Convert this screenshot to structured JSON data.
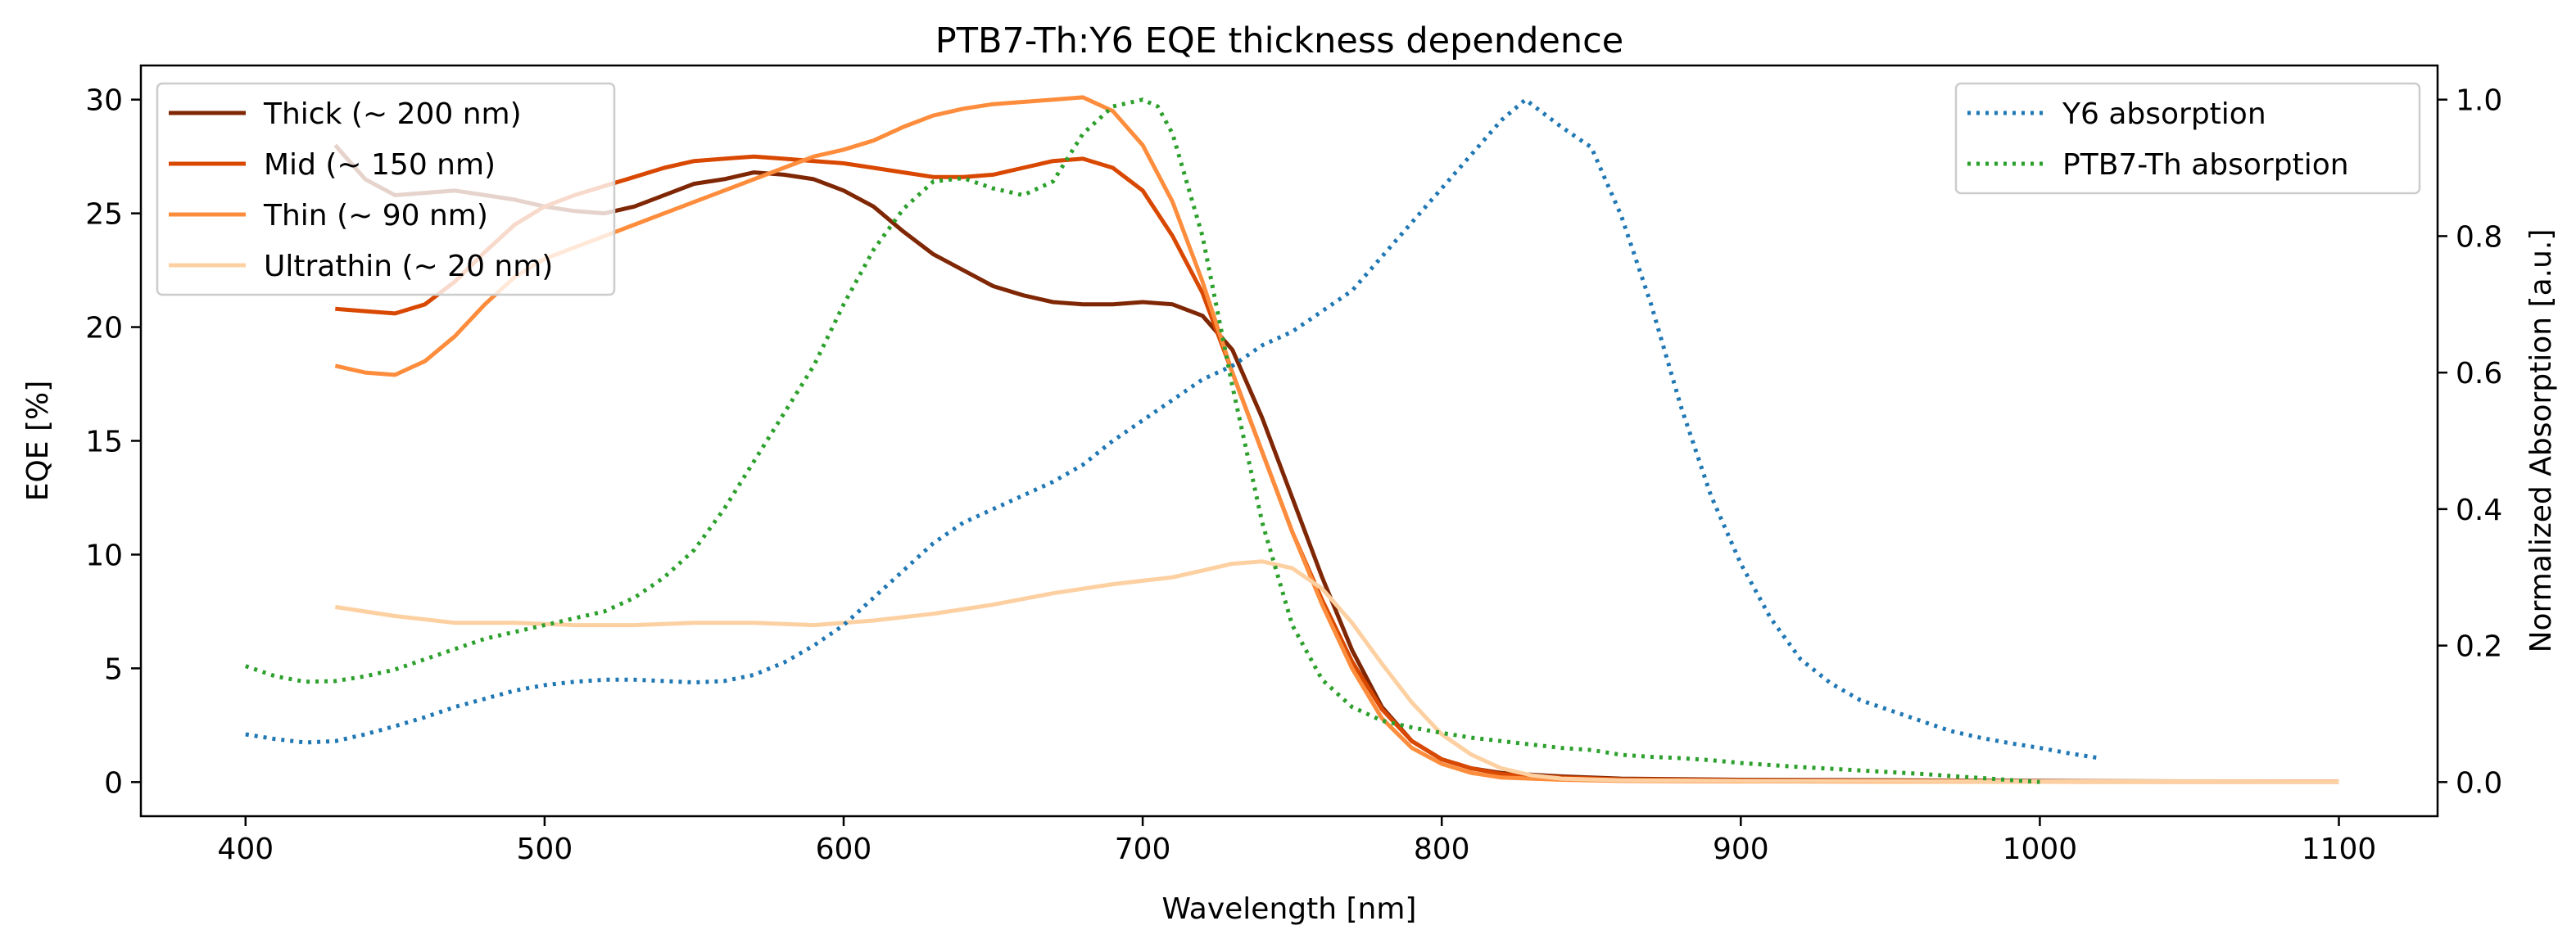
{
  "chart_data": {
    "type": "line",
    "title": "PTB7-Th:Y6 EQE thickness dependence",
    "xlabel": "Wavelength [nm]",
    "ylabel": "EQE [%]",
    "y2label": "Normalized Absorption [a.u.]",
    "xlim": [
      365,
      1133
    ],
    "ylim": [
      -1.5,
      31.5
    ],
    "y2lim": [
      -0.05,
      1.05
    ],
    "xticks": [
      400,
      500,
      600,
      700,
      800,
      900,
      1000,
      1100
    ],
    "yticks": [
      0,
      5,
      10,
      15,
      20,
      25,
      30
    ],
    "y2ticks": [
      0.0,
      0.2,
      0.4,
      0.6,
      0.8,
      1.0
    ],
    "y2ticklabels": [
      "0.0",
      "0.2",
      "0.4",
      "0.6",
      "0.8",
      "1.0"
    ],
    "grid": false,
    "legend_left_position": "upper-left",
    "legend_right_position": "upper-right",
    "series": [
      {
        "name": "Thick (~ 200 nm)",
        "axis": "left",
        "color": "#7f2704",
        "style": "solid",
        "x": [
          430,
          440,
          450,
          460,
          470,
          480,
          490,
          500,
          510,
          520,
          530,
          540,
          550,
          560,
          570,
          580,
          590,
          600,
          610,
          620,
          630,
          640,
          650,
          660,
          670,
          680,
          690,
          700,
          710,
          720,
          730,
          740,
          750,
          760,
          770,
          780,
          790,
          800,
          810,
          820,
          840,
          860,
          900,
          950,
          1000,
          1050,
          1100
        ],
        "y": [
          28.0,
          26.5,
          25.8,
          25.9,
          26.0,
          25.8,
          25.6,
          25.3,
          25.1,
          25.0,
          25.3,
          25.8,
          26.3,
          26.5,
          26.8,
          26.7,
          26.5,
          26.0,
          25.3,
          24.2,
          23.2,
          22.5,
          21.8,
          21.4,
          21.1,
          21.0,
          21.0,
          21.1,
          21.0,
          20.5,
          19.0,
          16.0,
          12.5,
          9.0,
          5.8,
          3.3,
          1.8,
          1.0,
          0.6,
          0.4,
          0.25,
          0.15,
          0.1,
          0.08,
          0.05,
          0.03,
          0.02
        ]
      },
      {
        "name": "Mid (~ 150 nm)",
        "axis": "left",
        "color": "#d94801",
        "style": "solid",
        "x": [
          430,
          440,
          450,
          460,
          470,
          480,
          490,
          500,
          510,
          520,
          530,
          540,
          550,
          560,
          570,
          580,
          590,
          600,
          610,
          620,
          630,
          640,
          650,
          660,
          670,
          680,
          690,
          700,
          710,
          720,
          730,
          740,
          750,
          760,
          770,
          780,
          790,
          800,
          810,
          820,
          840,
          860,
          900,
          950,
          1000,
          1050,
          1100
        ],
        "y": [
          20.8,
          20.7,
          20.6,
          21.0,
          22.0,
          23.3,
          24.5,
          25.3,
          25.8,
          26.2,
          26.6,
          27.0,
          27.3,
          27.4,
          27.5,
          27.4,
          27.3,
          27.2,
          27.0,
          26.8,
          26.6,
          26.6,
          26.7,
          27.0,
          27.3,
          27.4,
          27.0,
          26.0,
          24.0,
          21.5,
          18.0,
          14.5,
          11.0,
          8.0,
          5.3,
          3.2,
          1.8,
          1.0,
          0.6,
          0.35,
          0.2,
          0.12,
          0.08,
          0.05,
          0.03,
          0.02,
          0.02
        ]
      },
      {
        "name": "Thin (~ 90 nm)",
        "axis": "left",
        "color": "#fd8d3c",
        "style": "solid",
        "x": [
          430,
          440,
          450,
          460,
          470,
          480,
          490,
          500,
          510,
          520,
          530,
          540,
          550,
          560,
          570,
          580,
          590,
          600,
          610,
          620,
          630,
          640,
          650,
          660,
          670,
          680,
          690,
          700,
          710,
          720,
          730,
          740,
          750,
          760,
          770,
          780,
          790,
          800,
          810,
          820,
          840,
          860,
          900,
          950,
          1000,
          1050,
          1100
        ],
        "y": [
          18.3,
          18.0,
          17.9,
          18.5,
          19.6,
          21.0,
          22.2,
          23.0,
          23.5,
          24.0,
          24.5,
          25.0,
          25.5,
          26.0,
          26.5,
          27.0,
          27.5,
          27.8,
          28.2,
          28.8,
          29.3,
          29.6,
          29.8,
          29.9,
          30.0,
          30.1,
          29.5,
          28.0,
          25.5,
          22.0,
          18.0,
          14.5,
          11.0,
          7.8,
          5.0,
          2.8,
          1.5,
          0.8,
          0.4,
          0.2,
          0.1,
          0.05,
          0.03,
          0.02,
          0.02,
          0.02,
          0.02
        ]
      },
      {
        "name": "Ultrathin (~ 20 nm)",
        "axis": "left",
        "color": "#fdd0a2",
        "style": "solid",
        "x": [
          430,
          450,
          470,
          490,
          510,
          530,
          550,
          570,
          590,
          610,
          630,
          650,
          670,
          690,
          710,
          720,
          730,
          740,
          750,
          760,
          770,
          780,
          790,
          800,
          810,
          820,
          830,
          840,
          860,
          900,
          1000,
          1100
        ],
        "y": [
          7.7,
          7.3,
          7.0,
          7.0,
          6.9,
          6.9,
          7.0,
          7.0,
          6.9,
          7.1,
          7.4,
          7.8,
          8.3,
          8.7,
          9.0,
          9.3,
          9.6,
          9.7,
          9.4,
          8.5,
          7.0,
          5.2,
          3.5,
          2.1,
          1.2,
          0.6,
          0.3,
          0.15,
          0.08,
          0.05,
          0.03,
          0.02
        ]
      },
      {
        "name": "Y6 absorption",
        "axis": "right",
        "color": "#1f77b4",
        "style": "dotted",
        "x": [
          400,
          410,
          420,
          430,
          440,
          450,
          460,
          470,
          480,
          490,
          500,
          510,
          520,
          530,
          540,
          550,
          560,
          570,
          580,
          590,
          600,
          610,
          620,
          630,
          640,
          650,
          660,
          670,
          680,
          690,
          700,
          710,
          720,
          730,
          740,
          750,
          760,
          770,
          780,
          790,
          800,
          810,
          820,
          828,
          840,
          850,
          860,
          870,
          880,
          890,
          900,
          910,
          920,
          930,
          940,
          950,
          960,
          970,
          980,
          990,
          1000,
          1010,
          1020
        ],
        "y": [
          0.07,
          0.063,
          0.058,
          0.06,
          0.07,
          0.082,
          0.095,
          0.11,
          0.122,
          0.134,
          0.142,
          0.147,
          0.15,
          0.15,
          0.148,
          0.146,
          0.148,
          0.157,
          0.175,
          0.2,
          0.23,
          0.27,
          0.31,
          0.35,
          0.38,
          0.4,
          0.42,
          0.44,
          0.465,
          0.5,
          0.53,
          0.56,
          0.59,
          0.61,
          0.64,
          0.66,
          0.69,
          0.72,
          0.77,
          0.82,
          0.87,
          0.92,
          0.97,
          1.0,
          0.96,
          0.93,
          0.83,
          0.7,
          0.55,
          0.42,
          0.32,
          0.24,
          0.18,
          0.145,
          0.12,
          0.105,
          0.09,
          0.075,
          0.065,
          0.057,
          0.05,
          0.042,
          0.035
        ]
      },
      {
        "name": "PTB7-Th absorption",
        "axis": "right",
        "color": "#2ca02c",
        "style": "dotted",
        "x": [
          400,
          410,
          420,
          430,
          440,
          450,
          460,
          470,
          480,
          490,
          500,
          510,
          520,
          530,
          540,
          550,
          560,
          570,
          580,
          590,
          600,
          610,
          620,
          630,
          640,
          650,
          660,
          670,
          680,
          690,
          700,
          705,
          710,
          720,
          730,
          740,
          750,
          760,
          770,
          780,
          790,
          800,
          810,
          820,
          830,
          840,
          850,
          860,
          870,
          880,
          890,
          900,
          920,
          940,
          960,
          980,
          1000
        ],
        "y": [
          0.17,
          0.155,
          0.147,
          0.148,
          0.155,
          0.165,
          0.18,
          0.195,
          0.21,
          0.22,
          0.23,
          0.24,
          0.25,
          0.27,
          0.3,
          0.34,
          0.4,
          0.47,
          0.54,
          0.61,
          0.7,
          0.78,
          0.84,
          0.88,
          0.885,
          0.87,
          0.86,
          0.88,
          0.95,
          0.99,
          1.0,
          0.99,
          0.95,
          0.8,
          0.58,
          0.38,
          0.23,
          0.15,
          0.11,
          0.09,
          0.08,
          0.072,
          0.065,
          0.06,
          0.055,
          0.05,
          0.047,
          0.04,
          0.037,
          0.035,
          0.032,
          0.028,
          0.022,
          0.017,
          0.012,
          0.006,
          0.0
        ]
      }
    ]
  }
}
